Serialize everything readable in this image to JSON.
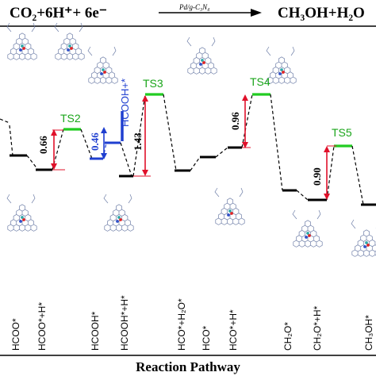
{
  "header": {
    "reactants": "CO₂+6H⁺+ 6e⁻",
    "catalyst": "Pd/g-C₃N₄",
    "products": "CH₃OH+H₂O"
  },
  "axis_title": "Reaction Pathway",
  "ts_labels": [
    "TS2",
    "TS3",
    "TS4",
    "TS5"
  ],
  "intermediate_tag": "HCOOH+*",
  "barriers": [
    {
      "value": "0.66",
      "color": "#000000"
    },
    {
      "value": "0.46",
      "color": "#1f3fd0"
    },
    {
      "value": "1.43",
      "color": "#000000"
    },
    {
      "value": "0.96",
      "color": "#000000"
    },
    {
      "value": "0.90",
      "color": "#000000"
    }
  ],
  "species": [
    "HCOO*",
    "HCOO*+H*",
    "HCOOH*",
    "HCOOH*+H*",
    "HCO*+H₂O*",
    "HCO*",
    "HCO*+H*",
    "CH₂O*",
    "CH₂O*+H*",
    "CH₃OH*"
  ],
  "colors": {
    "level": "#000000",
    "transition_state": "#22cc22",
    "barrier_arrow": "#e0102a",
    "blue_level": "#1f3fd0",
    "structure": "#6f7fa8"
  },
  "chart_data": {
    "type": "energy-profile",
    "states": [
      {
        "name": "HCOO*"
      },
      {
        "name": "HCOO*+H*"
      },
      {
        "name": "TS2"
      },
      {
        "name": "HCOOH*"
      },
      {
        "name": "HCOOH+*"
      },
      {
        "name": "HCOOH*+H*"
      },
      {
        "name": "TS3"
      },
      {
        "name": "HCO*+H2O*"
      },
      {
        "name": "HCO*"
      },
      {
        "name": "HCO*+H*"
      },
      {
        "name": "TS4"
      },
      {
        "name": "CH2O*"
      },
      {
        "name": "CH2O*+H*"
      },
      {
        "name": "TS5"
      },
      {
        "name": "CH3OH*"
      }
    ],
    "barriers_eV": [
      0.66,
      0.46,
      1.43,
      0.96,
      0.9
    ]
  }
}
